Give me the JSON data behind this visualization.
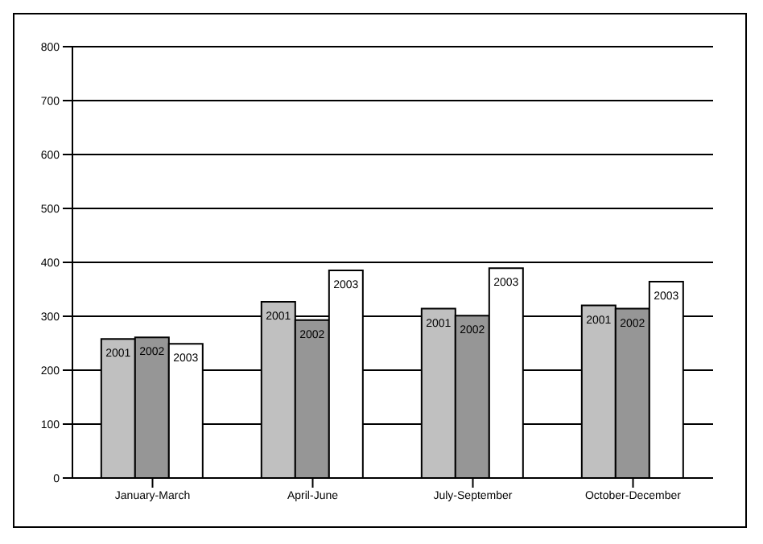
{
  "chart_data": {
    "type": "bar",
    "categories": [
      "January-March",
      "April-June",
      "July-September",
      "October-December"
    ],
    "series": [
      {
        "name": "2001",
        "color": "#c0c0c0",
        "values": [
          258,
          327,
          314,
          320
        ]
      },
      {
        "name": "2002",
        "color": "#969696",
        "values": [
          261,
          293,
          301,
          314
        ]
      },
      {
        "name": "2003",
        "color": "#ffffff",
        "values": [
          249,
          385,
          389,
          364
        ]
      }
    ],
    "ylim": [
      0,
      800
    ],
    "yticks": [
      0,
      100,
      200,
      300,
      400,
      500,
      600,
      700,
      800
    ],
    "grid": "y",
    "legend": false
  }
}
